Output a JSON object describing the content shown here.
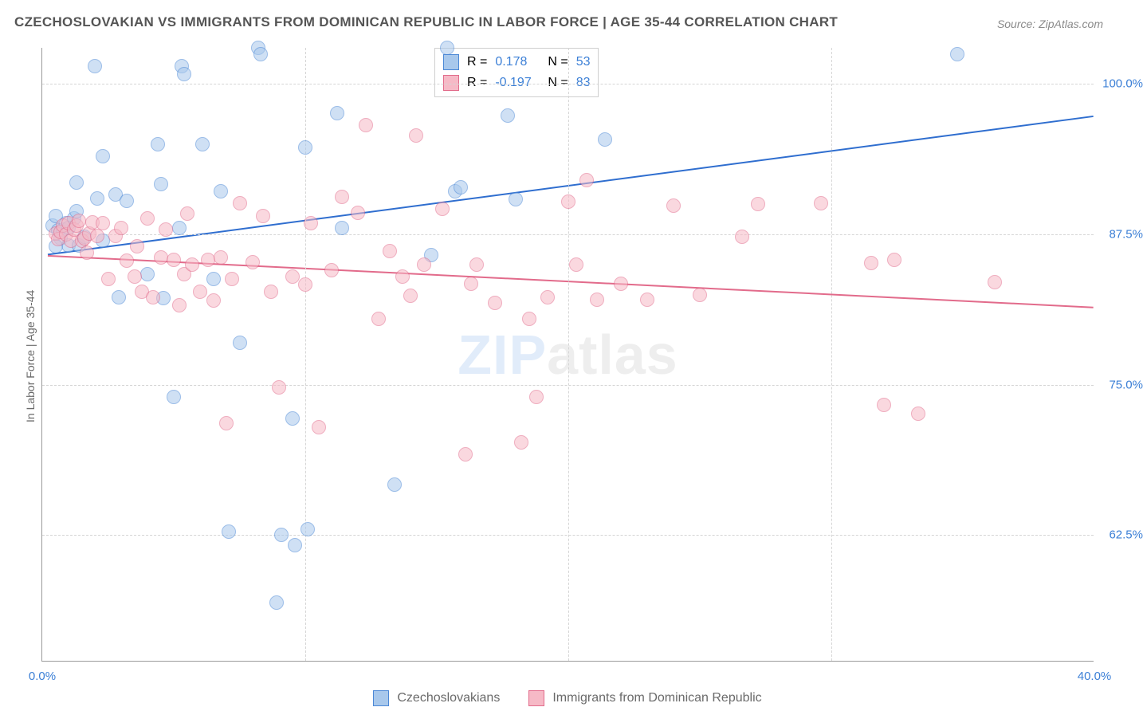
{
  "title": "CZECHOSLOVAKIAN VS IMMIGRANTS FROM DOMINICAN REPUBLIC IN LABOR FORCE | AGE 35-44 CORRELATION CHART",
  "source_label": "Source: ZipAtlas.com",
  "y_axis_label": "In Labor Force | Age 35-44",
  "watermark": {
    "part1": "ZIP",
    "part2": "atlas"
  },
  "chart": {
    "type": "scatter",
    "background_color": "#ffffff",
    "grid_color": "#d5d5d5",
    "axis_color": "#9a9a9a",
    "tick_color": "#3b7fd6",
    "label_color": "#6a6a6a",
    "xlim": [
      0,
      40
    ],
    "ylim": [
      52,
      103
    ],
    "x_ticks": [
      {
        "value": 0,
        "label": "0.0%"
      },
      {
        "value": 40,
        "label": "40.0%"
      }
    ],
    "x_grid_values": [
      10,
      20,
      30
    ],
    "y_ticks": [
      {
        "value": 62.5,
        "label": "62.5%"
      },
      {
        "value": 75.0,
        "label": "75.0%"
      },
      {
        "value": 87.5,
        "label": "87.5%"
      },
      {
        "value": 100.0,
        "label": "100.0%"
      }
    ],
    "marker_radius": 9,
    "marker_opacity": 0.55,
    "line_width": 2
  },
  "legend_top": {
    "r_label": "R =",
    "n_label": "N =",
    "rows": [
      {
        "r": "0.178",
        "n": "53",
        "fill": "#a8c8ec",
        "stroke": "#4b88d6"
      },
      {
        "r": "-0.197",
        "n": "83",
        "fill": "#f6b9c6",
        "stroke": "#e26b8b"
      }
    ]
  },
  "legend_bottom": [
    {
      "label": "Czechoslovakians",
      "fill": "#a8c8ec",
      "stroke": "#4b88d6"
    },
    {
      "label": "Immigrants from Dominican Republic",
      "fill": "#f6b9c6",
      "stroke": "#e26b8b"
    }
  ],
  "series": [
    {
      "name": "Czechoslovakians",
      "fill": "#a8c8ec",
      "stroke": "#4b88d6",
      "trend": {
        "x1": 0.2,
        "y1": 85.8,
        "x2": 40,
        "y2": 97.3,
        "color": "#2f6ecf"
      },
      "points": [
        [
          0.4,
          88.2
        ],
        [
          0.5,
          89.0
        ],
        [
          0.6,
          87.8
        ],
        [
          0.7,
          87.2
        ],
        [
          0.8,
          87.9
        ],
        [
          0.9,
          88.4
        ],
        [
          1.0,
          86.6
        ],
        [
          1.0,
          88.0
        ],
        [
          1.2,
          88.8
        ],
        [
          1.3,
          89.4
        ],
        [
          1.3,
          91.8
        ],
        [
          1.4,
          86.6
        ],
        [
          1.6,
          87.3
        ],
        [
          2.0,
          101.5
        ],
        [
          2.1,
          90.5
        ],
        [
          2.3,
          94.0
        ],
        [
          2.3,
          87.0
        ],
        [
          2.8,
          90.8
        ],
        [
          2.9,
          82.3
        ],
        [
          3.2,
          90.3
        ],
        [
          4.0,
          84.2
        ],
        [
          4.4,
          95.0
        ],
        [
          4.5,
          91.7
        ],
        [
          4.6,
          82.2
        ],
        [
          5.0,
          74.0
        ],
        [
          5.2,
          88.0
        ],
        [
          5.3,
          101.5
        ],
        [
          5.4,
          100.8
        ],
        [
          6.1,
          95.0
        ],
        [
          6.5,
          83.8
        ],
        [
          6.8,
          91.1
        ],
        [
          7.1,
          62.8
        ],
        [
          7.5,
          78.5
        ],
        [
          8.2,
          103.0
        ],
        [
          8.3,
          102.5
        ],
        [
          8.9,
          56.9
        ],
        [
          9.1,
          62.5
        ],
        [
          9.5,
          72.2
        ],
        [
          9.6,
          61.7
        ],
        [
          10.0,
          94.7
        ],
        [
          10.1,
          63.0
        ],
        [
          11.2,
          97.6
        ],
        [
          11.4,
          88.0
        ],
        [
          13.4,
          66.7
        ],
        [
          14.8,
          85.8
        ],
        [
          15.4,
          103.0
        ],
        [
          15.7,
          91.1
        ],
        [
          15.9,
          91.4
        ],
        [
          17.7,
          97.4
        ],
        [
          18.0,
          90.4
        ],
        [
          21.4,
          95.4
        ],
        [
          34.8,
          102.5
        ],
        [
          0.5,
          86.5
        ]
      ]
    },
    {
      "name": "Immigrants from Dominican Republic",
      "fill": "#f6b9c6",
      "stroke": "#e26b8b",
      "trend": {
        "x1": 0.2,
        "y1": 85.7,
        "x2": 40,
        "y2": 81.4,
        "color": "#e26b8b"
      },
      "points": [
        [
          0.5,
          87.6
        ],
        [
          0.6,
          87.1
        ],
        [
          0.7,
          87.7
        ],
        [
          0.8,
          88.2
        ],
        [
          0.9,
          87.5
        ],
        [
          1.0,
          88.4
        ],
        [
          1.1,
          87.0
        ],
        [
          1.2,
          87.9
        ],
        [
          1.3,
          88.2
        ],
        [
          1.4,
          88.6
        ],
        [
          1.5,
          87.0
        ],
        [
          1.6,
          87.2
        ],
        [
          1.7,
          86.0
        ],
        [
          1.8,
          87.6
        ],
        [
          1.9,
          88.5
        ],
        [
          2.1,
          87.4
        ],
        [
          2.3,
          88.4
        ],
        [
          2.5,
          83.8
        ],
        [
          2.8,
          87.4
        ],
        [
          3.0,
          88.0
        ],
        [
          3.2,
          85.3
        ],
        [
          3.5,
          84.0
        ],
        [
          3.6,
          86.5
        ],
        [
          3.8,
          82.7
        ],
        [
          4.0,
          88.8
        ],
        [
          4.2,
          82.3
        ],
        [
          4.5,
          85.6
        ],
        [
          4.7,
          87.9
        ],
        [
          5.0,
          85.4
        ],
        [
          5.2,
          81.6
        ],
        [
          5.4,
          84.2
        ],
        [
          5.5,
          89.2
        ],
        [
          5.7,
          85.0
        ],
        [
          6.0,
          82.7
        ],
        [
          6.3,
          85.4
        ],
        [
          6.5,
          82.0
        ],
        [
          6.8,
          85.6
        ],
        [
          7.0,
          71.8
        ],
        [
          7.2,
          83.8
        ],
        [
          7.5,
          90.1
        ],
        [
          8.0,
          85.2
        ],
        [
          8.4,
          89.0
        ],
        [
          8.7,
          82.7
        ],
        [
          9.0,
          74.8
        ],
        [
          9.5,
          84.0
        ],
        [
          10.0,
          83.3
        ],
        [
          10.2,
          88.4
        ],
        [
          10.5,
          71.5
        ],
        [
          11.0,
          84.5
        ],
        [
          11.4,
          90.6
        ],
        [
          12.0,
          89.3
        ],
        [
          12.3,
          96.6
        ],
        [
          12.8,
          80.5
        ],
        [
          13.2,
          86.1
        ],
        [
          13.7,
          84.0
        ],
        [
          14.0,
          82.4
        ],
        [
          14.2,
          95.7
        ],
        [
          14.5,
          85.0
        ],
        [
          15.2,
          89.6
        ],
        [
          16.1,
          69.2
        ],
        [
          16.3,
          83.4
        ],
        [
          16.5,
          85.0
        ],
        [
          17.2,
          81.8
        ],
        [
          18.2,
          70.2
        ],
        [
          18.5,
          80.5
        ],
        [
          18.8,
          74.0
        ],
        [
          19.2,
          82.3
        ],
        [
          20.0,
          90.2
        ],
        [
          20.3,
          85.0
        ],
        [
          20.7,
          92.0
        ],
        [
          21.1,
          82.1
        ],
        [
          22.0,
          83.4
        ],
        [
          23.0,
          82.1
        ],
        [
          24.0,
          89.9
        ],
        [
          25.0,
          82.5
        ],
        [
          26.6,
          87.3
        ],
        [
          27.2,
          90.0
        ],
        [
          29.6,
          90.1
        ],
        [
          31.5,
          85.1
        ],
        [
          32.0,
          73.3
        ],
        [
          32.4,
          85.4
        ],
        [
          33.3,
          72.6
        ],
        [
          36.2,
          83.5
        ]
      ]
    }
  ]
}
